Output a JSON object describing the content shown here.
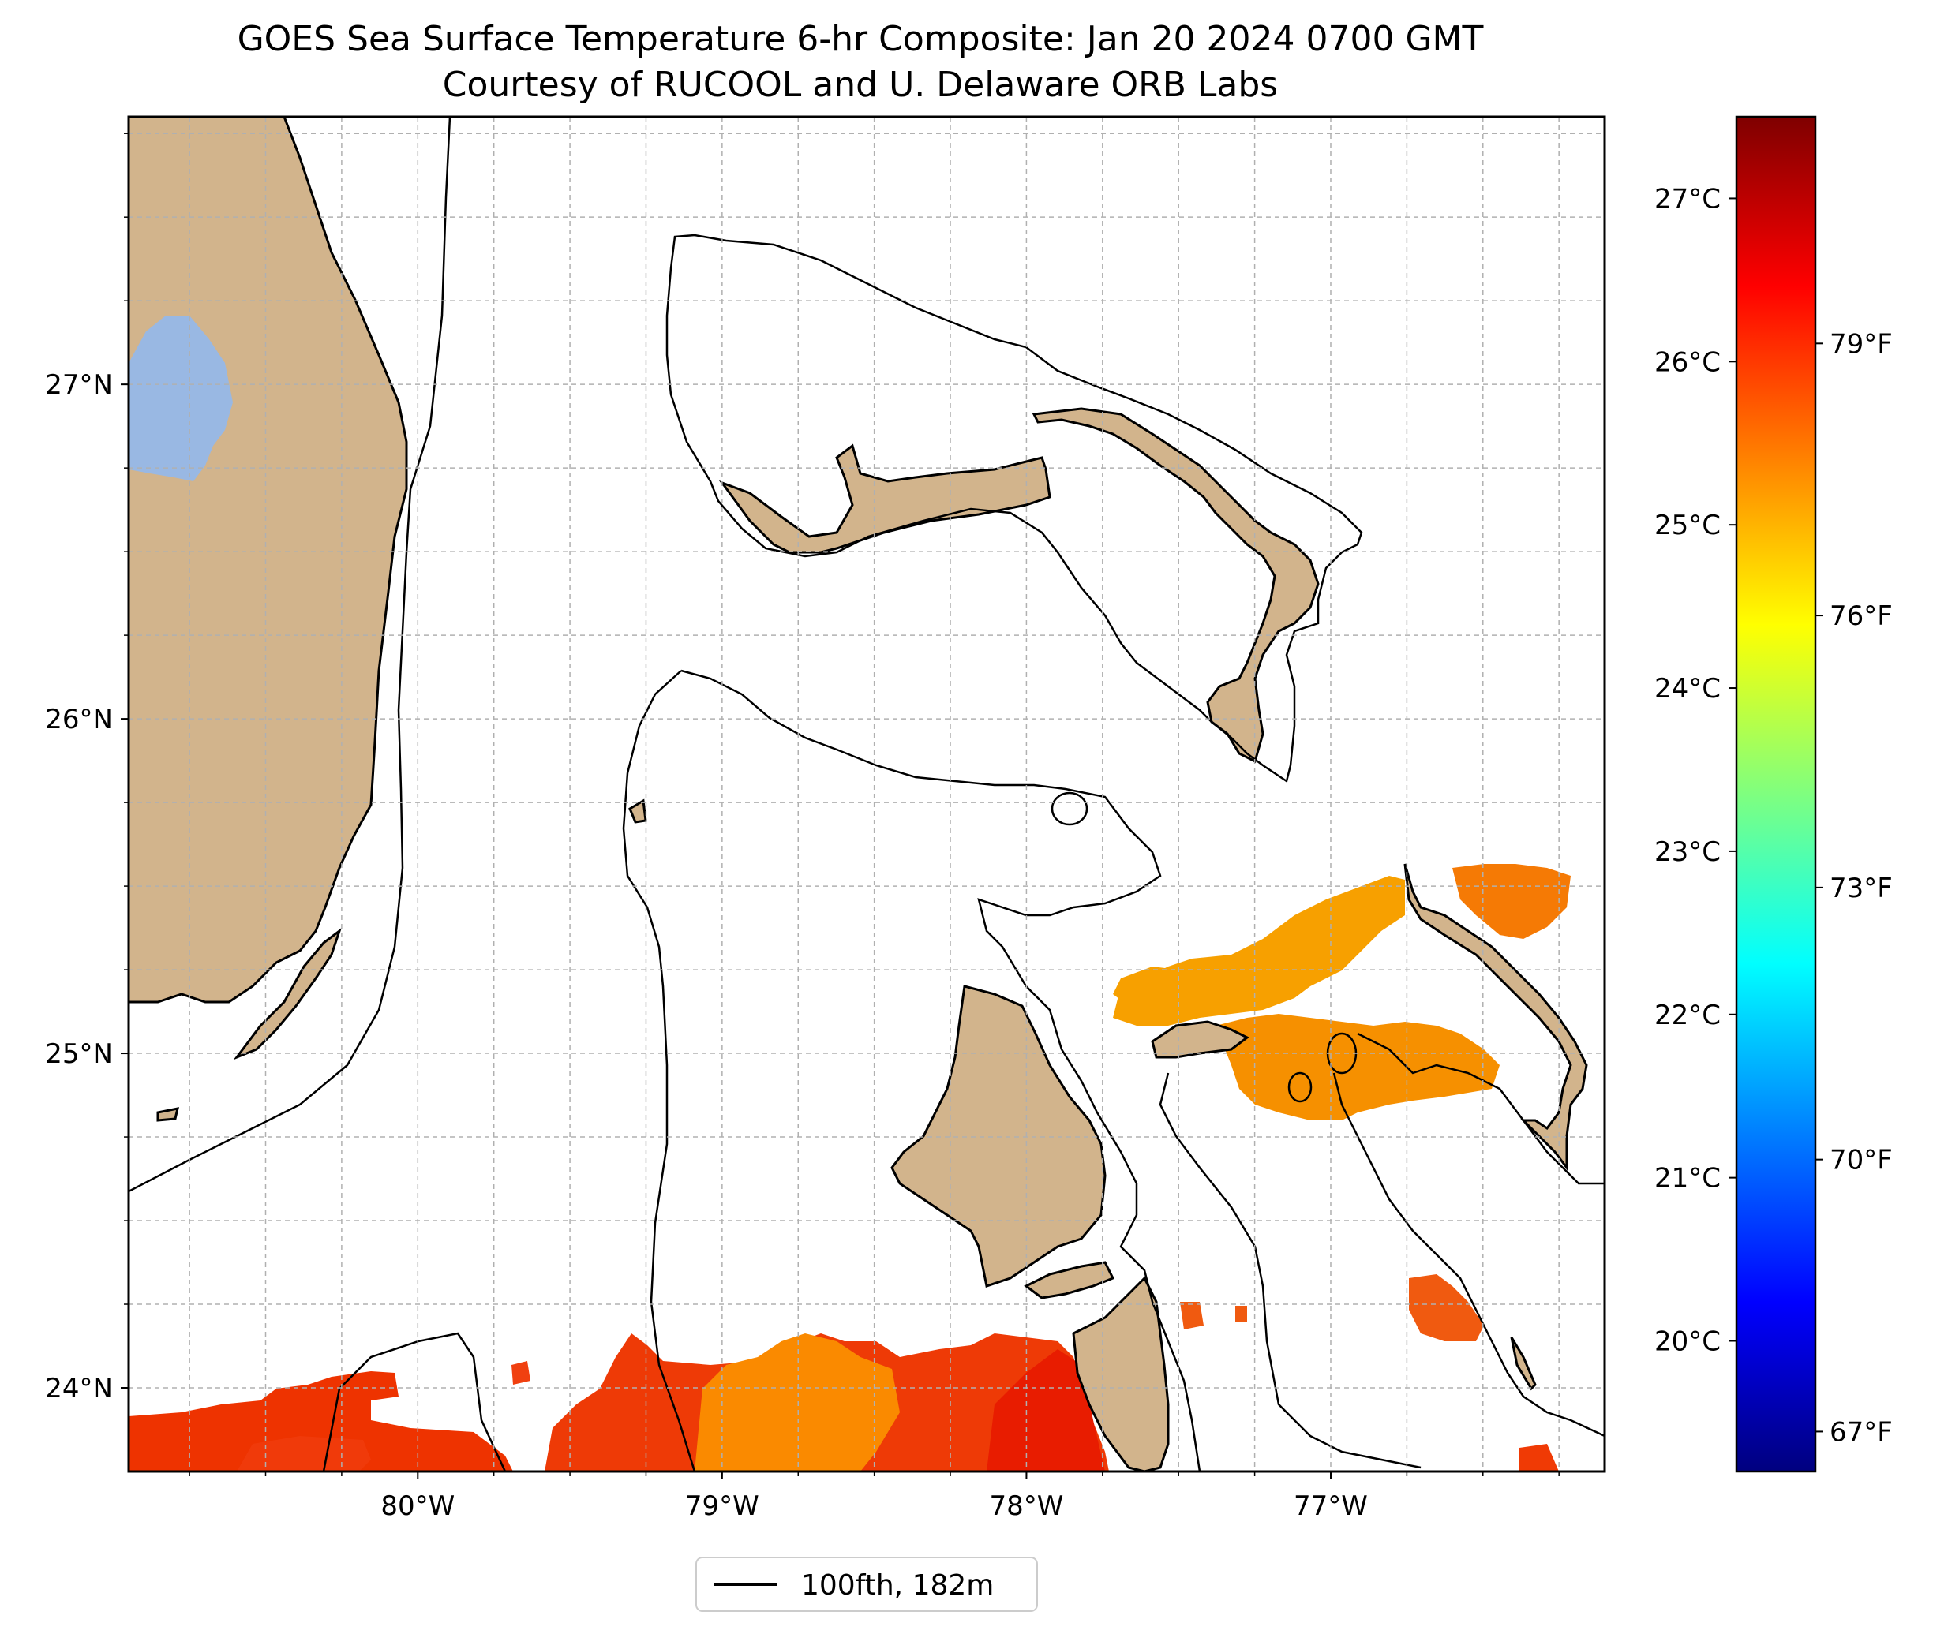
{
  "title": {
    "line1": "GOES Sea Surface Temperature 6-hr Composite: Jan 20 2024 0700 GMT",
    "line2": "Courtesy of RUCOOL and U. Delaware ORB Labs"
  },
  "map": {
    "lon_range": [
      -80.95,
      -76.1
    ],
    "lat_range": [
      23.75,
      27.8
    ],
    "lon_ticks": [
      "80°W",
      "79°W",
      "78°W",
      "77°W"
    ],
    "lat_ticks": [
      "24°N",
      "25°N",
      "26°N",
      "27°N"
    ],
    "gridlines": true,
    "land_color": "#d2b48c",
    "lake_color": "#99b8e3",
    "ocean_color": "#ffffff",
    "contour_color": "#000000"
  },
  "colorbar": {
    "colormap": "jet",
    "celsius_ticks": [
      "27°C",
      "26°C",
      "25°C",
      "24°C",
      "23°C",
      "22°C",
      "21°C",
      "20°C"
    ],
    "fahrenheit_ticks": [
      "79°F",
      "76°F",
      "73°F",
      "70°F",
      "67°F"
    ],
    "colors": [
      "#00007f",
      "#0000ff",
      "#007fff",
      "#00ffff",
      "#7fff7f",
      "#ffff00",
      "#ff7f00",
      "#ff0000",
      "#7f0000"
    ]
  },
  "legend": {
    "label": "100fth, 182m",
    "placement": "bottom-center"
  }
}
